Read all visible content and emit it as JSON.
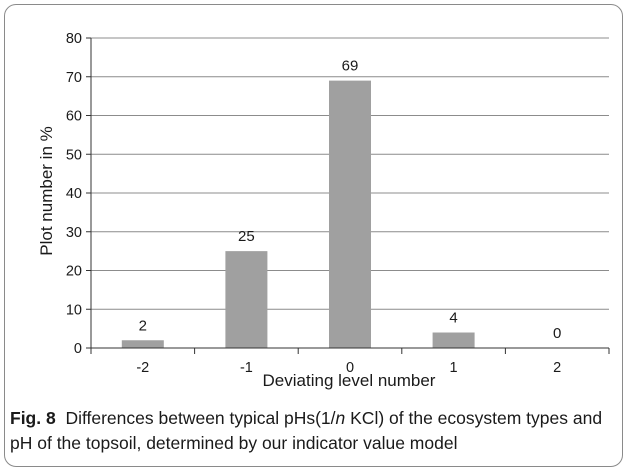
{
  "chart_data": {
    "type": "bar",
    "categories": [
      "-2",
      "-1",
      "0",
      "1",
      "2"
    ],
    "values": [
      2,
      25,
      69,
      4,
      0
    ],
    "data_labels": [
      "2",
      "25",
      "69",
      "4",
      "0"
    ],
    "xlabel": "Deviating level number",
    "ylabel": "Plot number in %",
    "ylim": [
      0,
      80
    ],
    "yticks": [
      0,
      10,
      20,
      30,
      40,
      50,
      60,
      70,
      80
    ],
    "grid": true,
    "bar_color": "#a0a0a0",
    "grid_color": "#8c8c8c"
  },
  "caption": {
    "label": "Fig. 8",
    "text_before": "Differences between typical pHs(1/",
    "italic": "n",
    "text_after": " KCl) of the ecosystem types and pH of the topsoil, determined by our indicator value model"
  }
}
